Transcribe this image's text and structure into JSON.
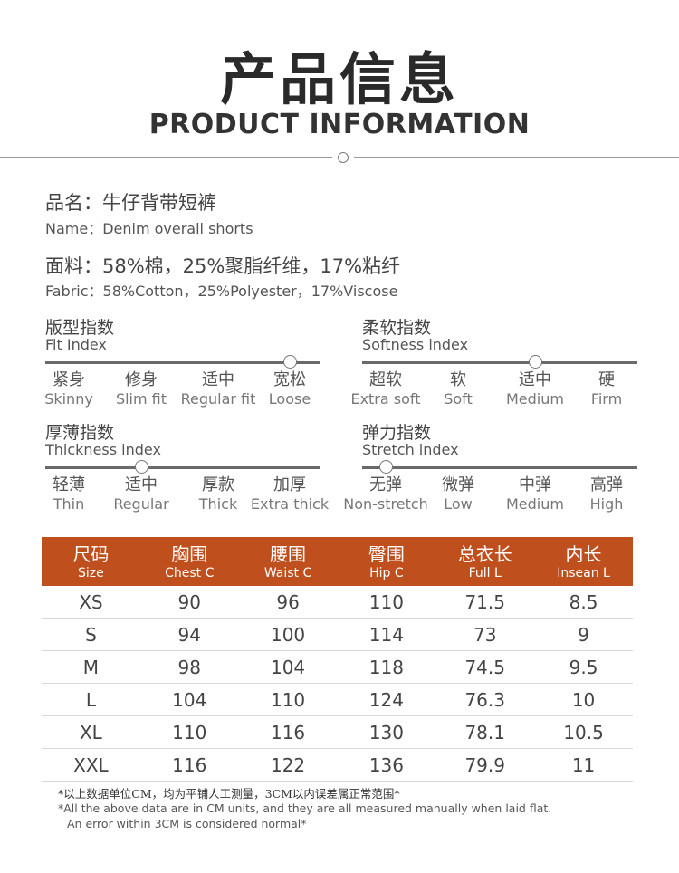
{
  "header": {
    "title_cn": "产品信息",
    "title_en": "PRODUCT INFORMATION"
  },
  "info": {
    "name_cn": "品名：牛仔背带短裤",
    "name_en": "Name：Denim overall shorts",
    "fabric_cn": "面料：58%棉，25%聚脂纤维，17%粘纤",
    "fabric_en": "Fabric：58%Cotton，25%Polyester，17%Viscose"
  },
  "indices": [
    {
      "title_cn": "版型指数",
      "title_en": "Fit Index",
      "selected": 3,
      "options": [
        {
          "cn": "紧身",
          "en": "Skinny"
        },
        {
          "cn": "修身",
          "en": "Slim fit"
        },
        {
          "cn": "适中",
          "en": "Regular fit"
        },
        {
          "cn": "宽松",
          "en": "Loose"
        }
      ]
    },
    {
      "title_cn": "柔软指数",
      "title_en": "Softness index",
      "selected": 2,
      "options": [
        {
          "cn": "超软",
          "en": "Extra soft"
        },
        {
          "cn": "软",
          "en": "Soft"
        },
        {
          "cn": "适中",
          "en": "Medium"
        },
        {
          "cn": "硬",
          "en": "Firm"
        }
      ]
    },
    {
      "title_cn": "厚薄指数",
      "title_en": "Thickness index",
      "selected": 1,
      "options": [
        {
          "cn": "轻薄",
          "en": "Thin"
        },
        {
          "cn": "适中",
          "en": "Regular"
        },
        {
          "cn": "厚款",
          "en": "Thick"
        },
        {
          "cn": "加厚",
          "en": "Extra thick"
        }
      ]
    },
    {
      "title_cn": "弹力指数",
      "title_en": "Stretch index",
      "selected": 0,
      "options": [
        {
          "cn": "无弹",
          "en": "Non-stretch"
        },
        {
          "cn": "微弹",
          "en": "Low"
        },
        {
          "cn": "中弹",
          "en": "Medium"
        },
        {
          "cn": "高弹",
          "en": "High"
        }
      ]
    }
  ],
  "size_table": {
    "header_color": "#c04f1e",
    "columns": [
      {
        "cn": "尺码",
        "en": "Size"
      },
      {
        "cn": "胸围",
        "en": "Chest C"
      },
      {
        "cn": "腰围",
        "en": "Waist C"
      },
      {
        "cn": "臀围",
        "en": "Hip C"
      },
      {
        "cn": "总衣长",
        "en": "Full L"
      },
      {
        "cn": "内长",
        "en": "Insean L"
      }
    ],
    "rows": [
      [
        "XS",
        "90",
        "96",
        "110",
        "71.5",
        "8.5"
      ],
      [
        "S",
        "94",
        "100",
        "114",
        "73",
        "9"
      ],
      [
        "M",
        "98",
        "104",
        "118",
        "74.5",
        "9.5"
      ],
      [
        "L",
        "104",
        "110",
        "124",
        "76.3",
        "10"
      ],
      [
        "XL",
        "110",
        "116",
        "130",
        "78.1",
        "10.5"
      ],
      [
        "XXL",
        "116",
        "122",
        "136",
        "79.9",
        "11"
      ]
    ]
  },
  "notes": {
    "cn": "*以上数据单位CM，均为平铺人工测量，3CM以内误差属正常范围*",
    "en_line1": "*All the above data are in CM units, and they are all measured manually when laid flat.",
    "en_line2": "An error within 3CM is considered normal*"
  }
}
